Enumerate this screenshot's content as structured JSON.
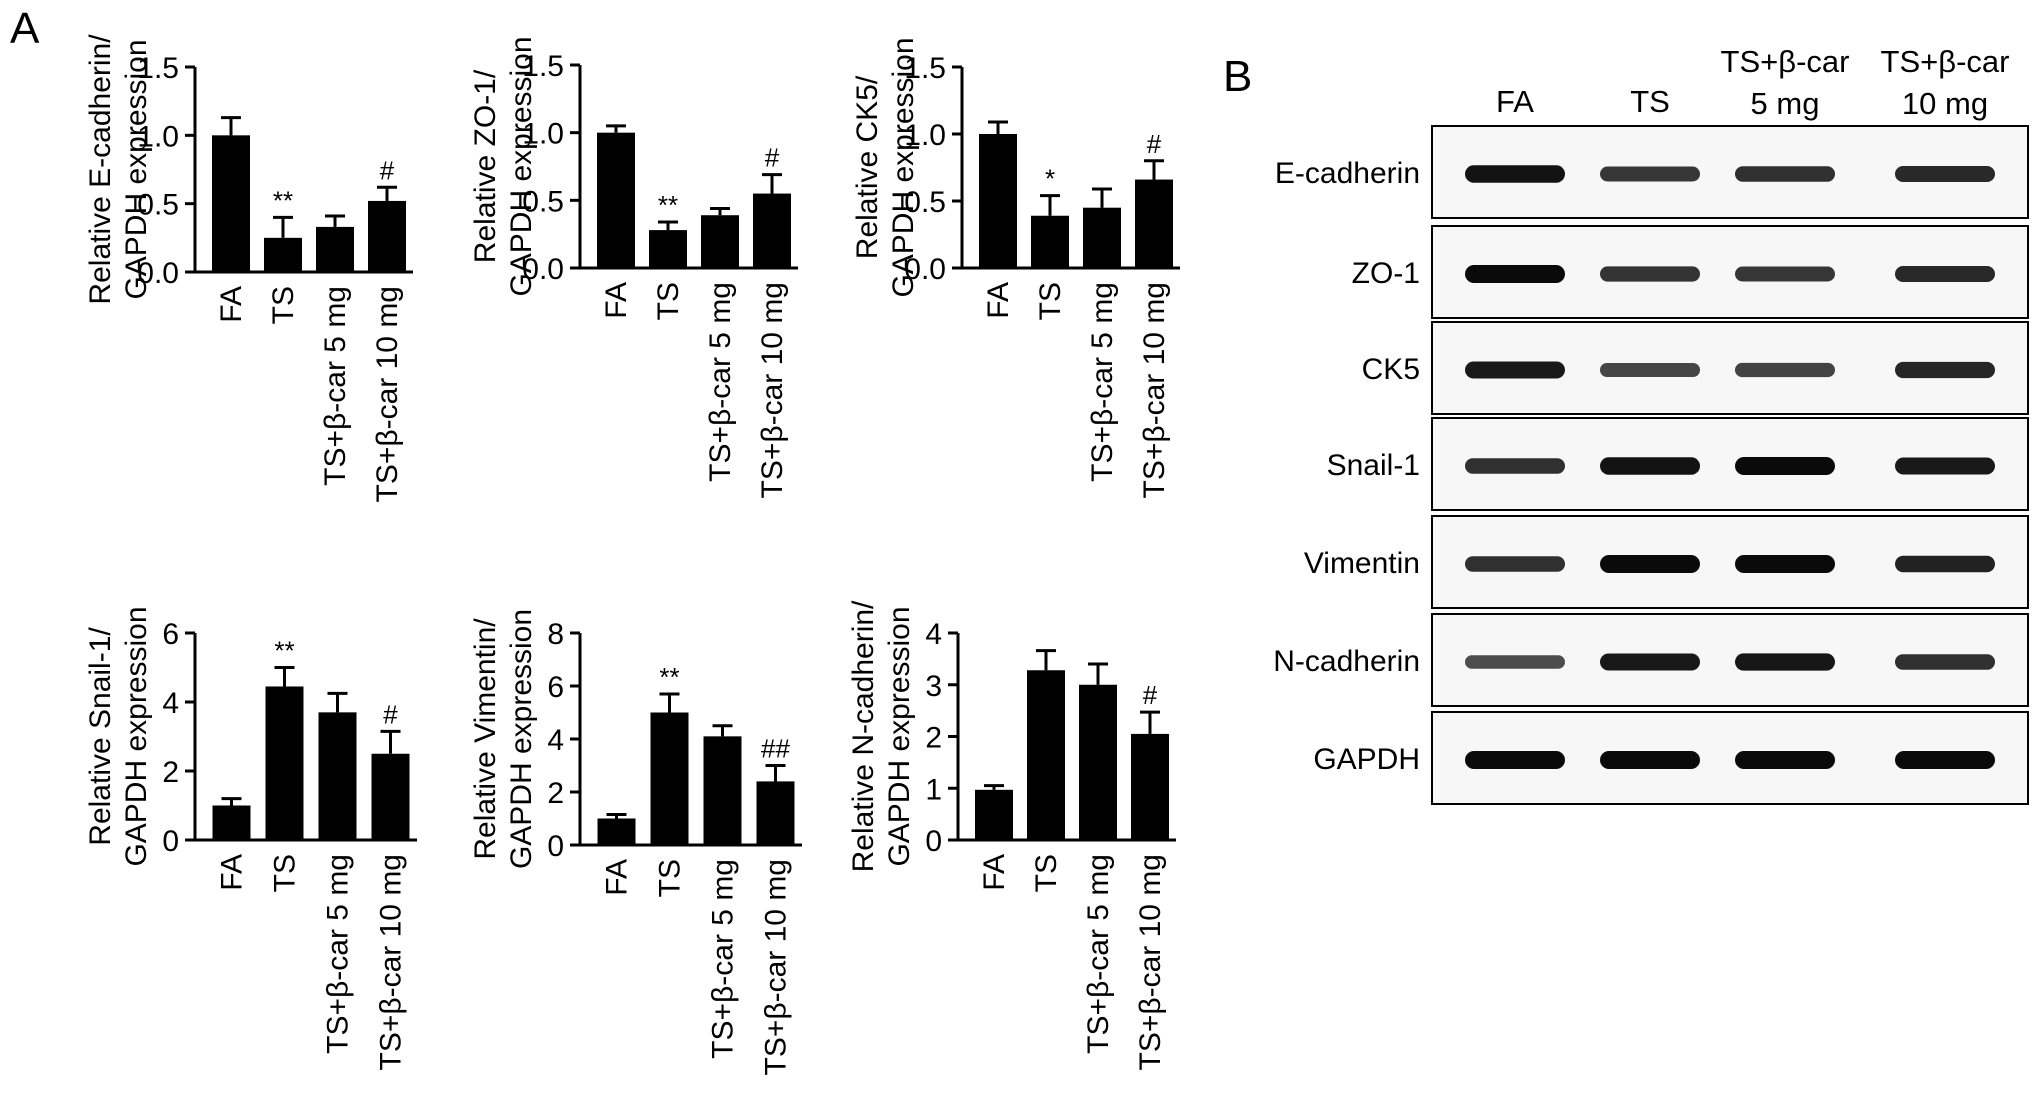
{
  "panel_a_label": "A",
  "panel_b_label": "B",
  "chart_data": [
    {
      "type": "bar",
      "categories": [
        "FA",
        "TS",
        "TS+β-car 5 mg",
        "TS+β-car 10 mg"
      ],
      "values": [
        1.0,
        0.25,
        0.33,
        0.52
      ],
      "errors": [
        0.13,
        0.15,
        0.08,
        0.1
      ],
      "annotations": [
        "",
        "**",
        "",
        "#"
      ],
      "ylabel": [
        "Relative E-cadherin/",
        "GAPDH expression"
      ],
      "ylim": [
        0,
        1.5
      ],
      "yticks": [
        "0.0",
        "0.5",
        "1.0",
        "1.5"
      ],
      "color": "#000000"
    },
    {
      "type": "bar",
      "categories": [
        "FA",
        "TS",
        "TS+β-car 5 mg",
        "TS+β-car 10 mg"
      ],
      "values": [
        1.0,
        0.28,
        0.39,
        0.55
      ],
      "errors": [
        0.05,
        0.06,
        0.05,
        0.14
      ],
      "annotations": [
        "",
        "**",
        "",
        "#"
      ],
      "ylabel": [
        "Relative ZO-1/",
        "GAPDH expression"
      ],
      "ylim": [
        0,
        1.5
      ],
      "yticks": [
        "0.0",
        "0.5",
        "1.0",
        "1.5"
      ],
      "color": "#000000"
    },
    {
      "type": "bar",
      "categories": [
        "FA",
        "TS",
        "TS+β-car 5 mg",
        "TS+β-car 10 mg"
      ],
      "values": [
        1.0,
        0.39,
        0.45,
        0.66
      ],
      "errors": [
        0.09,
        0.15,
        0.14,
        0.14
      ],
      "annotations": [
        "",
        "*",
        "",
        "#"
      ],
      "ylabel": [
        "Relative CK5/",
        "GAPDH expression"
      ],
      "ylim": [
        0,
        1.5
      ],
      "yticks": [
        "0.0",
        "0.5",
        "1.0",
        "1.5"
      ],
      "color": "#000000"
    },
    {
      "type": "bar",
      "categories": [
        "FA",
        "TS",
        "TS+β-car 5 mg",
        "TS+β-car 10 mg"
      ],
      "values": [
        1.0,
        4.45,
        3.7,
        2.5
      ],
      "errors": [
        0.2,
        0.55,
        0.55,
        0.65
      ],
      "annotations": [
        "",
        "**",
        "",
        "#"
      ],
      "ylabel": [
        "Relative Snail-1/",
        "GAPDH expression"
      ],
      "ylim": [
        0,
        6
      ],
      "yticks": [
        "0",
        "2",
        "4",
        "6"
      ],
      "color": "#000000"
    },
    {
      "type": "bar",
      "categories": [
        "FA",
        "TS",
        "TS+β-car 5 mg",
        "TS+β-car 10 mg"
      ],
      "values": [
        1.0,
        5.0,
        4.1,
        2.4
      ],
      "errors": [
        0.15,
        0.7,
        0.4,
        0.6
      ],
      "annotations": [
        "",
        "**",
        "",
        "##"
      ],
      "ylabel": [
        "Relative Vimentin/",
        "GAPDH expression"
      ],
      "ylim": [
        0,
        8
      ],
      "yticks": [
        "0",
        "2",
        "4",
        "6",
        "8"
      ],
      "color": "#000000"
    },
    {
      "type": "bar",
      "categories": [
        "FA",
        "TS",
        "TS+β-car 5 mg",
        "TS+β-car 10 mg"
      ],
      "values": [
        0.97,
        3.28,
        3.0,
        2.05
      ],
      "errors": [
        0.08,
        0.38,
        0.4,
        0.42
      ],
      "annotations": [
        "",
        "",
        "",
        "#"
      ],
      "ylabel": [
        "Relative N-cadherin/",
        "GAPDH expression"
      ],
      "ylim": [
        0,
        4
      ],
      "yticks": [
        "0",
        "1",
        "2",
        "3",
        "4"
      ],
      "color": "#000000"
    }
  ],
  "western_blot": {
    "columns": [
      [
        "FA"
      ],
      [
        "TS"
      ],
      [
        "TS+β-car",
        "5 mg"
      ],
      [
        "TS+β-car",
        "10 mg"
      ]
    ],
    "rows": [
      {
        "label": "E-cadherin",
        "intensities": [
          0.95,
          0.7,
          0.75,
          0.8
        ]
      },
      {
        "label": "ZO-1",
        "intensities": [
          1.0,
          0.72,
          0.7,
          0.8
        ]
      },
      {
        "label": "CK5",
        "intensities": [
          0.9,
          0.6,
          0.62,
          0.82
        ]
      },
      {
        "label": "Snail-1",
        "intensities": [
          0.75,
          0.95,
          1.0,
          0.9
        ]
      },
      {
        "label": "Vimentin",
        "intensities": [
          0.75,
          1.0,
          1.0,
          0.85
        ]
      },
      {
        "label": "N-cadherin",
        "intensities": [
          0.55,
          0.9,
          0.92,
          0.75
        ]
      },
      {
        "label": "GAPDH",
        "intensities": [
          1.0,
          1.0,
          1.0,
          1.0
        ]
      }
    ]
  }
}
